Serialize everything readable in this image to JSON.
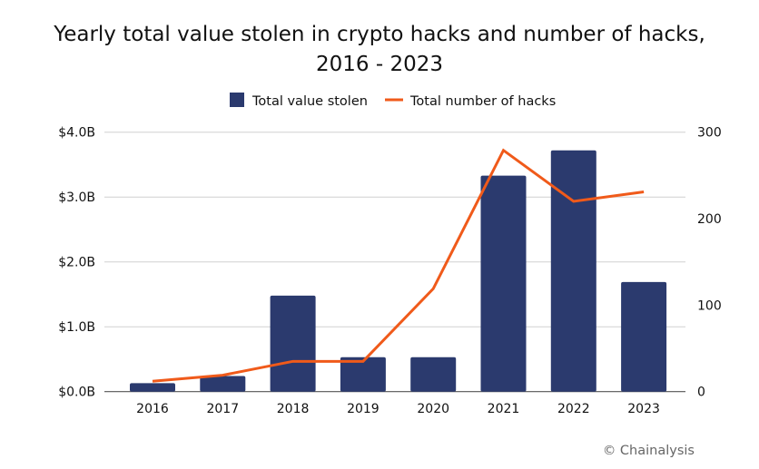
{
  "chart_data": {
    "type": "bar",
    "title_line1": "Yearly total value stolen in crypto hacks and number of hacks,",
    "title_line2": "2016 - 2023",
    "categories": [
      "2016",
      "2017",
      "2018",
      "2019",
      "2020",
      "2021",
      "2022",
      "2023"
    ],
    "series": [
      {
        "name": "Total value stolen",
        "type": "bar",
        "axis": "left",
        "unit": "USD billions",
        "color": "#2b3a6e",
        "values": [
          0.13,
          0.24,
          1.48,
          0.53,
          0.53,
          3.33,
          3.72,
          1.69
        ]
      },
      {
        "name": "Total number of hacks",
        "type": "line",
        "axis": "right",
        "color": "#f05a1a",
        "values": [
          12,
          19,
          35,
          35,
          119,
          279,
          220,
          231
        ]
      }
    ],
    "left_axis": {
      "ylim": [
        0,
        4
      ],
      "ticks": [
        0,
        1,
        2,
        3,
        4
      ],
      "tick_labels": [
        "$0.0B",
        "$1.0B",
        "$2.0B",
        "$3.0B",
        "$4.0B"
      ]
    },
    "right_axis": {
      "ylim": [
        0,
        300
      ],
      "ticks": [
        0,
        100,
        200,
        300
      ],
      "tick_labels": [
        "0",
        "100",
        "200",
        "300"
      ]
    },
    "grid": true,
    "legend_position": "top-center",
    "source": "© Chainalysis"
  }
}
